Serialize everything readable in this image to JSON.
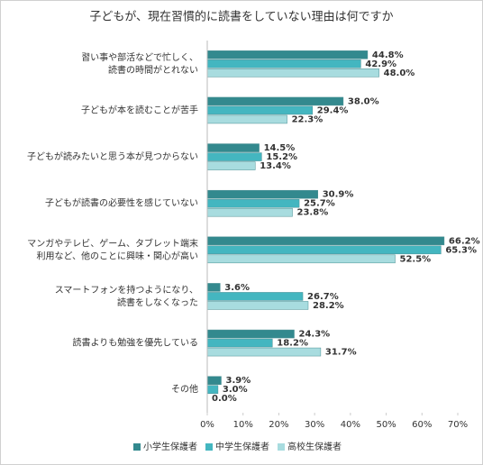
{
  "chart_data": {
    "type": "hbar",
    "title": "子どもが、現在習慣的に読書をしていない理由は何ですか",
    "categories": [
      "習い事や部活などで忙しく、\n読書の時間がとれない",
      "子どもが本を読むことが苦手",
      "子どもが読みたいと思う本が見つからない",
      "子どもが読書の必要性を感じていない",
      "マンガやテレビ、ゲーム、タブレット端末\n利用など、他のことに興味・関心が高い",
      "スマートフォンを持つようになり、\n読書をしなくなった",
      "読書よりも勉強を優先している",
      "その他"
    ],
    "series": [
      {
        "name": "小学生保護者",
        "color": "#33898e",
        "values": [
          44.8,
          38.0,
          14.5,
          30.9,
          66.2,
          3.6,
          24.3,
          3.9
        ],
        "value_labels": [
          "44.8%",
          "38.0%",
          "14.5%",
          "30.9%",
          "66.2%",
          "3.6%",
          "24.3%",
          "3.9%"
        ]
      },
      {
        "name": "中学生保護者",
        "color": "#44b6c0",
        "values": [
          42.9,
          29.4,
          15.2,
          25.7,
          65.3,
          26.7,
          18.2,
          3.0
        ],
        "value_labels": [
          "42.9%",
          "29.4%",
          "15.2%",
          "25.7%",
          "65.3%",
          "26.7%",
          "18.2%",
          "3.0%"
        ]
      },
      {
        "name": "高校生保護者",
        "color": "#a8dcdf",
        "values": [
          48.0,
          22.3,
          13.4,
          23.8,
          52.5,
          28.2,
          31.7,
          0.0
        ],
        "value_labels": [
          "48.0%",
          "22.3%",
          "13.4%",
          "23.8%",
          "52.5%",
          "28.2%",
          "31.7%",
          "0.0%"
        ]
      }
    ],
    "xlim": [
      0,
      70
    ],
    "xticks": [
      {
        "value": 0,
        "label": "0%"
      },
      {
        "value": 10,
        "label": "10%"
      },
      {
        "value": 20,
        "label": "20%"
      },
      {
        "value": 30,
        "label": "30%"
      },
      {
        "value": 40,
        "label": "40%"
      },
      {
        "value": 50,
        "label": "50%"
      },
      {
        "value": 60,
        "label": "60%"
      },
      {
        "value": 70,
        "label": "70%"
      }
    ],
    "legend": "bottom"
  }
}
